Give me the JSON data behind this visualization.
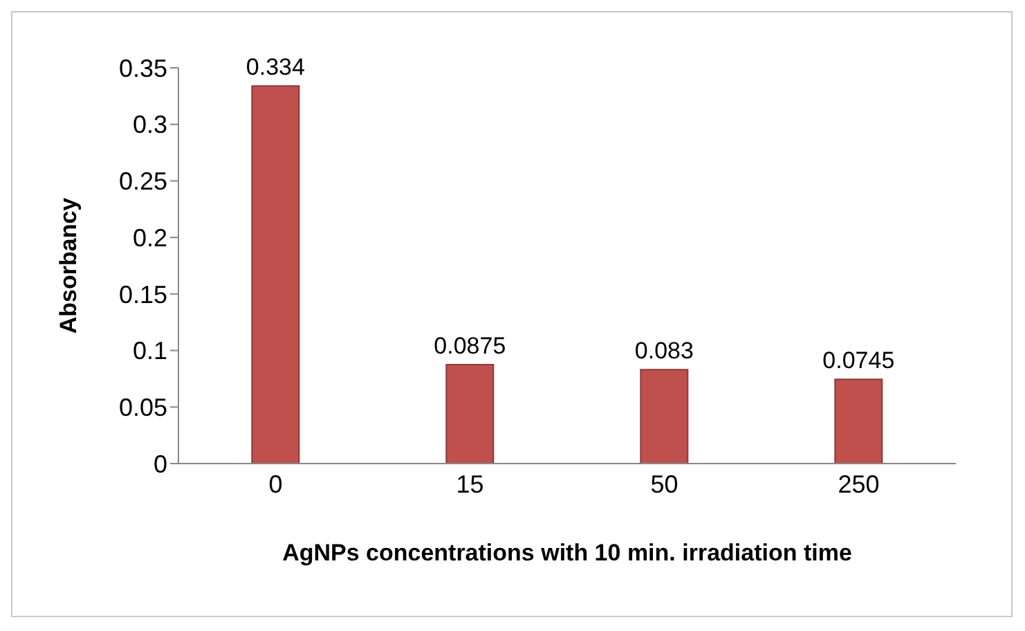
{
  "chart_data": {
    "type": "bar",
    "xlabel": "AgNPs concentrations with 10 min. irradiation time",
    "ylabel": "Absorbancy",
    "categories": [
      "0",
      "15",
      "50",
      "250"
    ],
    "values": [
      0.334,
      0.0875,
      0.083,
      0.0745
    ],
    "color": "#c0504d",
    "ylim": [
      0,
      0.35
    ],
    "yticks": [
      0,
      0.05,
      0.1,
      0.15,
      0.2,
      0.25,
      0.3,
      0.35
    ],
    "data_labels": true,
    "grid": false
  }
}
